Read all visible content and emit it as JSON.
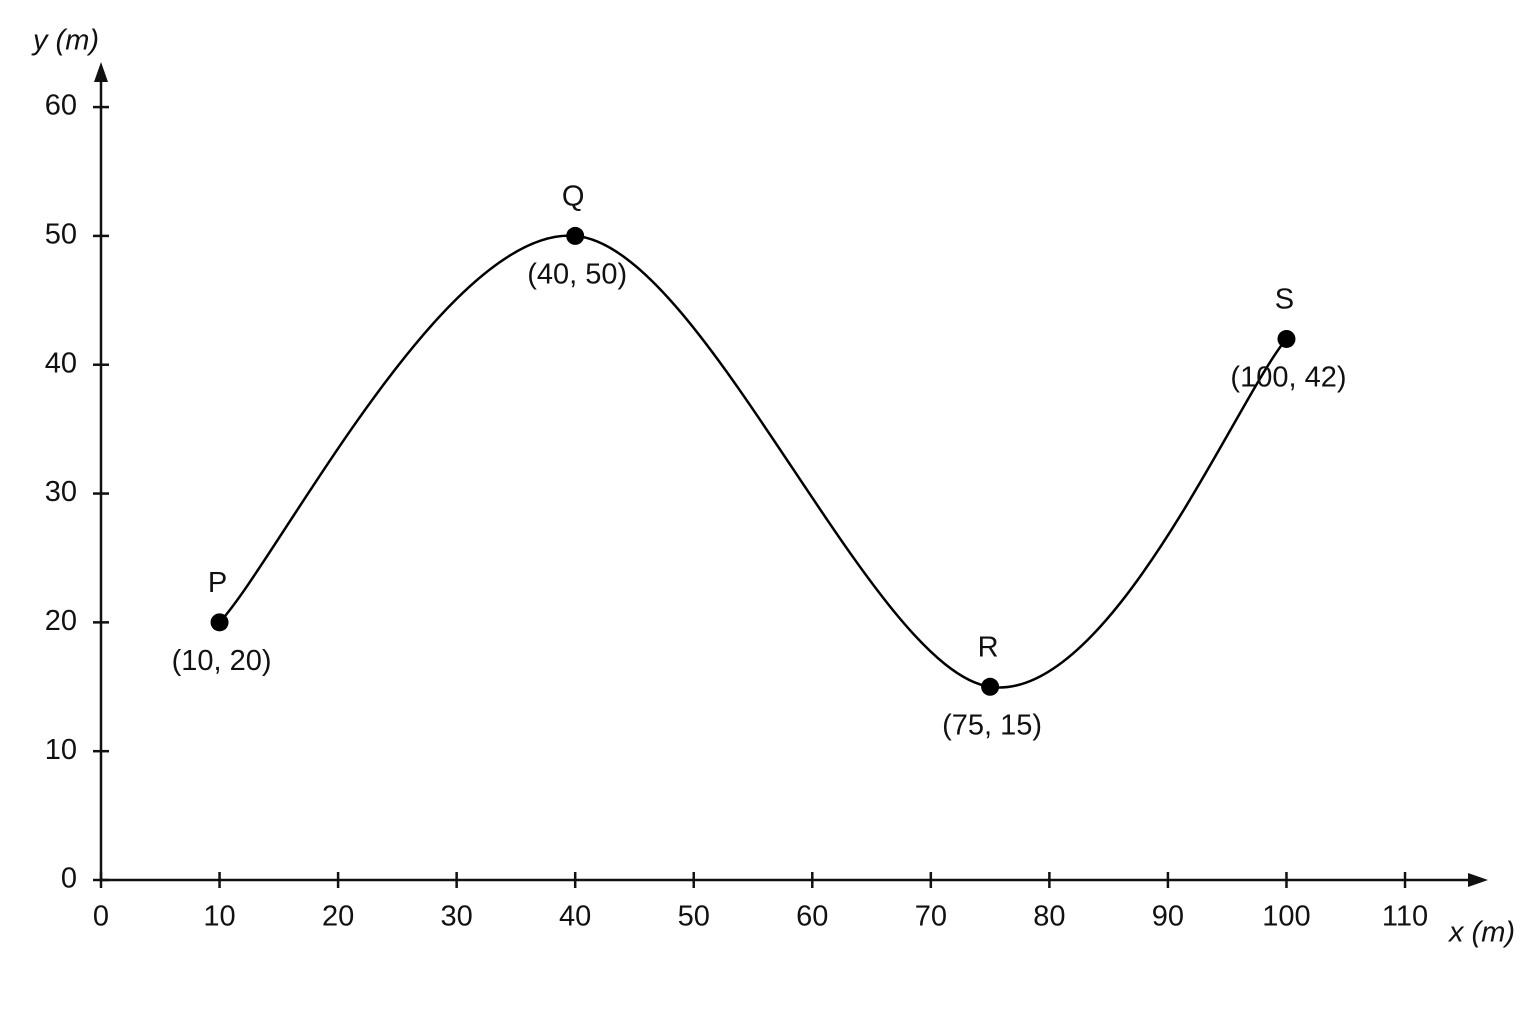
{
  "chart_data": {
    "type": "line",
    "x_label": "x (m)",
    "y_label": "y (m)",
    "x": [
      10,
      40,
      75,
      100
    ],
    "values": [
      20,
      50,
      15,
      42
    ],
    "point_names": [
      "P",
      "Q",
      "R",
      "S"
    ],
    "value_labels": [
      "(10, 20)",
      "(40, 50)",
      "(75, 15)",
      "(100, 42)"
    ],
    "color": "#000000",
    "xlim": [
      0,
      117
    ],
    "ylim": [
      0,
      63.5
    ],
    "xticks": [
      0,
      10,
      20,
      30,
      40,
      50,
      60,
      70,
      80,
      90,
      100,
      110
    ],
    "yticks": [
      0,
      10,
      20,
      30,
      40,
      50,
      60
    ]
  }
}
